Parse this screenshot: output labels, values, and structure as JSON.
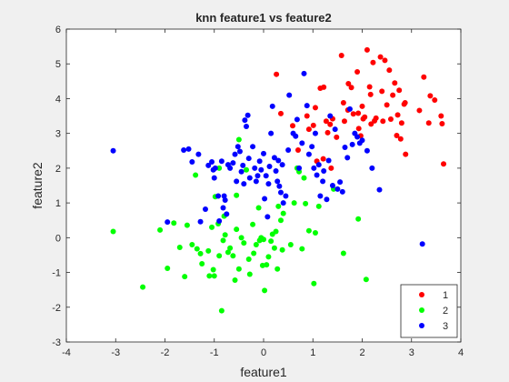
{
  "chart_data": {
    "type": "scatter",
    "title": "knn feature1 vs feature2",
    "xlabel": "feature1",
    "ylabel": "feature2",
    "xlim": [
      -4,
      4
    ],
    "ylim": [
      -3,
      6
    ],
    "xticks": [
      -4,
      -3,
      -2,
      -1,
      0,
      1,
      2,
      3,
      4
    ],
    "yticks": [
      -3,
      -2,
      -1,
      0,
      1,
      2,
      3,
      4,
      5,
      6
    ],
    "grid": false,
    "legend_position": "bottom-right",
    "series": [
      {
        "name": "1",
        "color": "#ff0000",
        "points": [
          [
            0.26,
            4.7
          ],
          [
            0.35,
            3.57
          ],
          [
            0.59,
            3.22
          ],
          [
            0.7,
            2.52
          ],
          [
            0.88,
            3.5
          ],
          [
            0.92,
            3.12
          ],
          [
            1.01,
            3.23
          ],
          [
            1.05,
            3.74
          ],
          [
            1.08,
            2.2
          ],
          [
            1.15,
            4.3
          ],
          [
            1.21,
            2.27
          ],
          [
            1.22,
            4.33
          ],
          [
            1.27,
            3.35
          ],
          [
            1.3,
            3.02
          ],
          [
            1.35,
            3.26
          ],
          [
            1.37,
            2.0
          ],
          [
            1.4,
            3.42
          ],
          [
            1.48,
            2.89
          ],
          [
            1.58,
            5.24
          ],
          [
            1.62,
            3.88
          ],
          [
            1.64,
            3.35
          ],
          [
            1.71,
            3.67
          ],
          [
            1.72,
            4.43
          ],
          [
            1.78,
            4.32
          ],
          [
            1.82,
            3.56
          ],
          [
            1.9,
            4.77
          ],
          [
            1.93,
            3.14
          ],
          [
            1.97,
            2.93
          ],
          [
            2.0,
            3.78
          ],
          [
            2.02,
            3.42
          ],
          [
            2.05,
            3.47
          ],
          [
            2.1,
            5.4
          ],
          [
            2.15,
            4.34
          ],
          [
            2.17,
            4.12
          ],
          [
            2.18,
            3.27
          ],
          [
            2.22,
            5.04
          ],
          [
            2.25,
            3.36
          ],
          [
            2.28,
            3.44
          ],
          [
            2.37,
            5.2
          ],
          [
            2.4,
            4.21
          ],
          [
            2.42,
            3.35
          ],
          [
            2.46,
            5.1
          ],
          [
            2.5,
            3.82
          ],
          [
            2.55,
            4.82
          ],
          [
            2.58,
            3.41
          ],
          [
            2.62,
            4.1
          ],
          [
            2.66,
            4.45
          ],
          [
            2.7,
            2.94
          ],
          [
            2.72,
            3.53
          ],
          [
            2.75,
            4.24
          ],
          [
            2.78,
            2.84
          ],
          [
            2.8,
            3.3
          ],
          [
            2.85,
            3.84
          ],
          [
            2.88,
            2.4
          ],
          [
            3.16,
            3.66
          ],
          [
            3.25,
            4.62
          ],
          [
            3.35,
            3.3
          ],
          [
            3.38,
            4.08
          ],
          [
            3.47,
            3.96
          ],
          [
            3.6,
            3.5
          ],
          [
            3.62,
            3.28
          ],
          [
            3.65,
            2.12
          ],
          [
            2.87,
            3.88
          ],
          [
            1.92,
            3.58
          ]
        ]
      },
      {
        "name": "2",
        "color": "#00ff00",
        "points": [
          [
            -3.05,
            0.18
          ],
          [
            -2.45,
            -1.42
          ],
          [
            -2.1,
            0.22
          ],
          [
            -1.95,
            -0.88
          ],
          [
            -1.82,
            0.42
          ],
          [
            -1.7,
            -0.28
          ],
          [
            -1.6,
            -1.12
          ],
          [
            -1.55,
            0.36
          ],
          [
            -1.45,
            -0.2
          ],
          [
            -1.35,
            -0.32
          ],
          [
            -1.28,
            -0.46
          ],
          [
            -1.25,
            -0.75
          ],
          [
            -1.12,
            -0.38
          ],
          [
            -1.1,
            -1.1
          ],
          [
            -1.05,
            0.3
          ],
          [
            -1.02,
            -0.92
          ],
          [
            -1.0,
            -1.1
          ],
          [
            -0.98,
            1.18
          ],
          [
            -0.92,
            0.4
          ],
          [
            -0.9,
            -0.52
          ],
          [
            -0.85,
            -2.1
          ],
          [
            -0.82,
            -0.08
          ],
          [
            -0.8,
            0.62
          ],
          [
            -0.78,
            0.08
          ],
          [
            -0.72,
            -0.42
          ],
          [
            -0.68,
            -0.3
          ],
          [
            -0.62,
            -0.52
          ],
          [
            -0.58,
            -1.22
          ],
          [
            -0.55,
            0.24
          ],
          [
            -0.5,
            -0.9
          ],
          [
            -0.45,
            0.0
          ],
          [
            -0.4,
            -0.15
          ],
          [
            -0.35,
            1.95
          ],
          [
            -0.3,
            -0.62
          ],
          [
            -0.28,
            -1.05
          ],
          [
            -0.22,
            0.38
          ],
          [
            -0.2,
            -0.45
          ],
          [
            -0.15,
            -0.2
          ],
          [
            -0.1,
            0.86
          ],
          [
            -0.08,
            -0.08
          ],
          [
            -0.05,
            0.0
          ],
          [
            -0.02,
            -0.8
          ],
          [
            0.0,
            -0.05
          ],
          [
            0.02,
            -1.52
          ],
          [
            0.06,
            -0.78
          ],
          [
            0.1,
            -0.55
          ],
          [
            0.15,
            -0.1
          ],
          [
            0.18,
            0.1
          ],
          [
            0.22,
            -0.3
          ],
          [
            0.25,
            0.18
          ],
          [
            0.28,
            -0.9
          ],
          [
            0.3,
            0.9
          ],
          [
            0.35,
            0.5
          ],
          [
            0.38,
            -0.35
          ],
          [
            0.4,
            0.7
          ],
          [
            0.55,
            -0.2
          ],
          [
            0.62,
            1.0
          ],
          [
            0.68,
            2.0
          ],
          [
            0.72,
            1.9
          ],
          [
            0.78,
            -0.32
          ],
          [
            0.82,
            1.72
          ],
          [
            0.85,
            0.98
          ],
          [
            0.92,
            0.2
          ],
          [
            1.02,
            -1.32
          ],
          [
            1.05,
            0.14
          ],
          [
            1.12,
            0.9
          ],
          [
            1.42,
            1.4
          ],
          [
            1.62,
            -0.45
          ],
          [
            1.92,
            0.54
          ],
          [
            2.08,
            -1.2
          ],
          [
            -1.38,
            1.8
          ],
          [
            -0.55,
            1.22
          ],
          [
            -0.9,
            2.0
          ],
          [
            -0.5,
            2.82
          ]
        ]
      },
      {
        "name": "3",
        "color": "#0000ff",
        "points": [
          [
            -3.05,
            2.5
          ],
          [
            -1.95,
            0.45
          ],
          [
            -1.62,
            2.52
          ],
          [
            -1.52,
            2.55
          ],
          [
            -1.45,
            2.18
          ],
          [
            -1.32,
            2.4
          ],
          [
            -1.28,
            0.46
          ],
          [
            -1.18,
            0.82
          ],
          [
            -1.12,
            2.08
          ],
          [
            -1.05,
            2.18
          ],
          [
            -1.02,
            1.95
          ],
          [
            -1.0,
            1.72
          ],
          [
            -0.98,
            2.0
          ],
          [
            -0.92,
            1.2
          ],
          [
            -0.9,
            0.48
          ],
          [
            -0.85,
            2.2
          ],
          [
            -0.82,
            0.86
          ],
          [
            -0.8,
            1.2
          ],
          [
            -0.78,
            1.08
          ],
          [
            -0.75,
            0.68
          ],
          [
            -0.72,
            2.1
          ],
          [
            -0.68,
            2.0
          ],
          [
            -0.62,
            2.15
          ],
          [
            -0.58,
            2.4
          ],
          [
            -0.55,
            1.62
          ],
          [
            -0.52,
            2.62
          ],
          [
            -0.48,
            2.48
          ],
          [
            -0.45,
            1.9
          ],
          [
            -0.42,
            2.08
          ],
          [
            -0.4,
            1.55
          ],
          [
            -0.38,
            3.38
          ],
          [
            -0.35,
            3.2
          ],
          [
            -0.32,
            3.52
          ],
          [
            -0.3,
            2.28
          ],
          [
            -0.28,
            1.72
          ],
          [
            -0.22,
            2.62
          ],
          [
            -0.18,
            2.0
          ],
          [
            -0.15,
            1.62
          ],
          [
            -0.12,
            1.78
          ],
          [
            -0.08,
            2.2
          ],
          [
            -0.05,
            1.95
          ],
          [
            0.0,
            2.42
          ],
          [
            0.02,
            1.12
          ],
          [
            0.05,
            1.78
          ],
          [
            0.08,
            0.6
          ],
          [
            0.1,
            1.55
          ],
          [
            0.12,
            2.05
          ],
          [
            0.15,
            3.0
          ],
          [
            0.18,
            3.78
          ],
          [
            0.22,
            2.3
          ],
          [
            0.25,
            1.92
          ],
          [
            0.28,
            1.62
          ],
          [
            0.3,
            2.22
          ],
          [
            0.32,
            1.48
          ],
          [
            0.35,
            1.3
          ],
          [
            0.38,
            2.1
          ],
          [
            0.4,
            1.0
          ],
          [
            0.45,
            1.2
          ],
          [
            0.5,
            2.52
          ],
          [
            0.52,
            4.1
          ],
          [
            0.6,
            3.0
          ],
          [
            0.65,
            2.92
          ],
          [
            0.68,
            3.4
          ],
          [
            0.72,
            2.0
          ],
          [
            0.78,
            2.72
          ],
          [
            0.82,
            4.72
          ],
          [
            0.88,
            3.8
          ],
          [
            0.92,
            2.4
          ],
          [
            0.98,
            2.62
          ],
          [
            1.02,
            2.0
          ],
          [
            1.05,
            3.0
          ],
          [
            1.08,
            1.8
          ],
          [
            1.12,
            2.1
          ],
          [
            1.15,
            1.2
          ],
          [
            1.2,
            1.62
          ],
          [
            1.22,
            1.92
          ],
          [
            1.28,
            1.1
          ],
          [
            1.32,
            2.22
          ],
          [
            1.35,
            3.5
          ],
          [
            1.4,
            1.5
          ],
          [
            1.45,
            3.12
          ],
          [
            1.5,
            1.4
          ],
          [
            1.55,
            1.6
          ],
          [
            1.6,
            1.32
          ],
          [
            1.65,
            2.6
          ],
          [
            1.7,
            2.3
          ],
          [
            1.75,
            3.7
          ],
          [
            1.8,
            2.68
          ],
          [
            1.85,
            3.0
          ],
          [
            1.9,
            2.9
          ],
          [
            1.95,
            2.72
          ],
          [
            2.0,
            2.8
          ],
          [
            2.1,
            2.5
          ],
          [
            2.2,
            2.0
          ],
          [
            2.35,
            1.38
          ],
          [
            3.22,
            -0.18
          ]
        ]
      }
    ]
  }
}
